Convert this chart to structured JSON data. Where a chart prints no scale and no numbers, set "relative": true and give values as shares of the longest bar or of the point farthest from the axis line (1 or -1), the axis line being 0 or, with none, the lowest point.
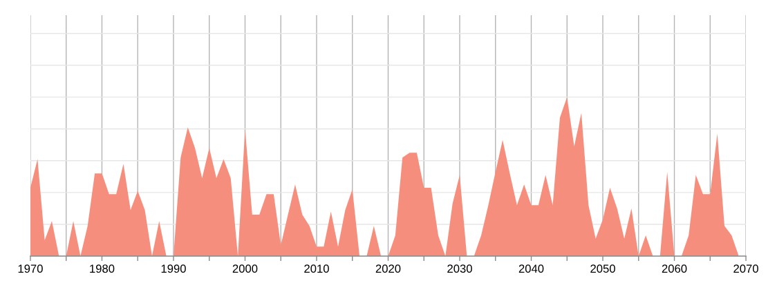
{
  "chart_data": {
    "type": "area",
    "relative": true,
    "color": "#f68e7e",
    "x": [
      1970,
      1971,
      1972,
      1973,
      1974,
      1975,
      1976,
      1977,
      1978,
      1979,
      1980,
      1981,
      1982,
      1983,
      1984,
      1985,
      1986,
      1987,
      1988,
      1989,
      1990,
      1991,
      1992,
      1993,
      1994,
      1995,
      1996,
      1997,
      1998,
      1999,
      2000,
      2001,
      2002,
      2003,
      2004,
      2005,
      2006,
      2007,
      2008,
      2009,
      2010,
      2011,
      2012,
      2013,
      2014,
      2015,
      2016,
      2017,
      2018,
      2019,
      2020,
      2021,
      2022,
      2023,
      2024,
      2025,
      2026,
      2027,
      2028,
      2029,
      2030,
      2031,
      2032,
      2033,
      2034,
      2035,
      2036,
      2037,
      2038,
      2039,
      2040,
      2041,
      2042,
      2043,
      2044,
      2045,
      2046,
      2047,
      2048,
      2049,
      2050,
      2051,
      2052,
      2053,
      2054,
      2055,
      2056,
      2057,
      2058,
      2059,
      2060,
      2061,
      2062,
      2063,
      2064,
      2065,
      2066,
      2067,
      2068,
      2069
    ],
    "values": [
      0.43,
      0.61,
      0.1,
      0.22,
      0,
      0,
      0.22,
      0,
      0.19,
      0.52,
      0.52,
      0.39,
      0.39,
      0.58,
      0.29,
      0.41,
      0.29,
      0,
      0.22,
      0,
      0,
      0.62,
      0.81,
      0.68,
      0.49,
      0.68,
      0.49,
      0.61,
      0.49,
      0,
      0.8,
      0.26,
      0.26,
      0.39,
      0.39,
      0.07,
      0.26,
      0.45,
      0.26,
      0.19,
      0.06,
      0.06,
      0.28,
      0.06,
      0.29,
      0.42,
      0,
      0,
      0.19,
      0,
      0,
      0.13,
      0.62,
      0.65,
      0.65,
      0.43,
      0.43,
      0.13,
      0,
      0.33,
      0.51,
      0,
      0,
      0.13,
      0.32,
      0.53,
      0.73,
      0.52,
      0.32,
      0.45,
      0.32,
      0.32,
      0.51,
      0.32,
      0.87,
      1,
      0.69,
      0.9,
      0.32,
      0.11,
      0.23,
      0.43,
      0.3,
      0.11,
      0.3,
      0,
      0.13,
      0,
      0,
      0.53,
      0,
      0,
      0.13,
      0.51,
      0.39,
      0.39,
      0.77,
      0.19,
      0.13,
      0
    ],
    "xlim": [
      1970,
      2070
    ],
    "xticks": [
      1970,
      {
        "value": 1975,
        "label": null
      },
      1980,
      {
        "value": 1985,
        "label": null
      },
      1990,
      {
        "value": 1995,
        "label": null
      },
      2000,
      {
        "value": 2005,
        "label": null
      },
      2010,
      {
        "value": 2015,
        "label": null
      },
      2020,
      {
        "value": 2025,
        "label": null
      },
      2030,
      {
        "value": 2035,
        "label": null
      },
      2040,
      {
        "value": 2045,
        "label": null
      },
      2050,
      {
        "value": 2055,
        "label": null
      },
      2060,
      {
        "value": 2065,
        "label": null
      },
      2070
    ],
    "ylim": [
      0,
      1.515
    ],
    "grid": true,
    "tick_labels": "x",
    "legend": false
  }
}
